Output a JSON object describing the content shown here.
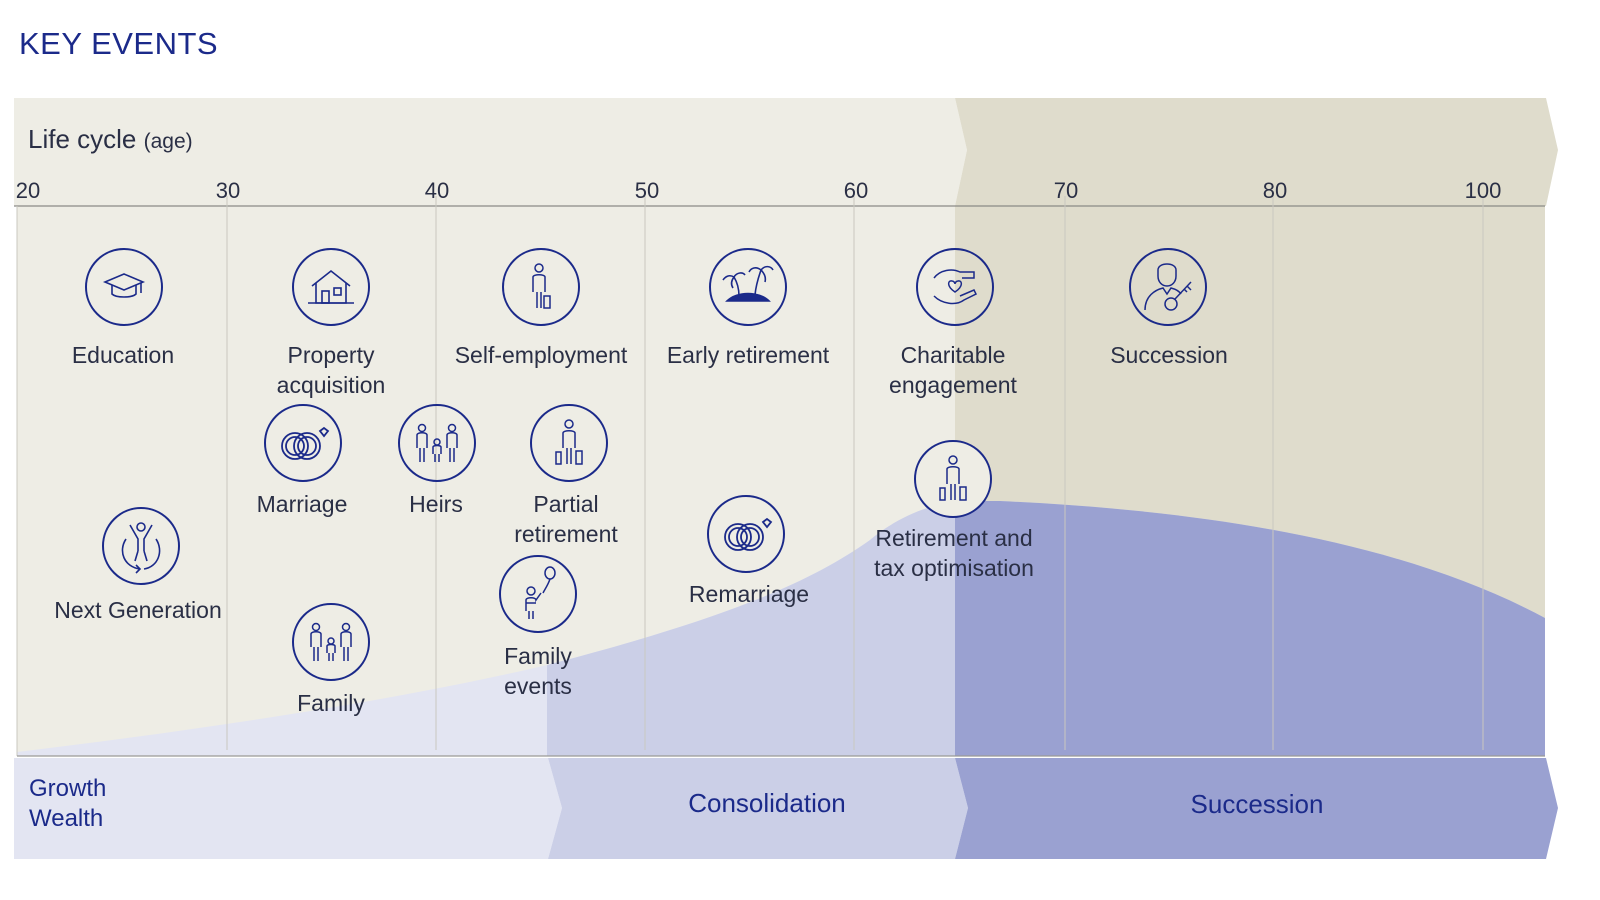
{
  "title": "KEY EVENTS",
  "lifecycle": {
    "label": "Life cycle",
    "unit": "(age)"
  },
  "ages": [
    "20",
    "30",
    "40",
    "50",
    "60",
    "70",
    "80",
    "100"
  ],
  "phases": {
    "growth_line1": "Growth",
    "growth_line2": "Wealth",
    "consolidation": "Consolidation",
    "succession": "Succession"
  },
  "events": {
    "education": "Education",
    "property_line1": "Property",
    "property_line2": "acquisition",
    "self_employment": "Self-employment",
    "early_retirement": "Early retirement",
    "charitable_line1": "Charitable",
    "charitable_line2": "engagement",
    "succession": "Succession",
    "marriage": "Marriage",
    "heirs": "Heirs",
    "partial_line1": "Partial",
    "partial_line2": "retirement",
    "next_generation": "Next Generation",
    "family": "Family",
    "family_events_line1": "Family",
    "family_events_line2": "events",
    "remarriage": "Remarriage",
    "retirement_tax_line1": "Retirement and",
    "retirement_tax_line2": "tax optimisation"
  },
  "icons": [
    "graduation-cap-icon",
    "house-icon",
    "person-icon",
    "palm-island-icon",
    "hand-heart-icon",
    "person-key-icon",
    "rings-icon",
    "family-icon",
    "person-luggage-icon",
    "cycle-person-icon",
    "balloon-child-icon"
  ],
  "colors": {
    "navy": "#1b2a8a",
    "beige": "#eeede5",
    "beige_dark": "#dfdccc",
    "lavender_light": "#e3e5f2",
    "lavender_mid": "#cbcfe7",
    "lavender_dark": "#9aa1d1"
  }
}
